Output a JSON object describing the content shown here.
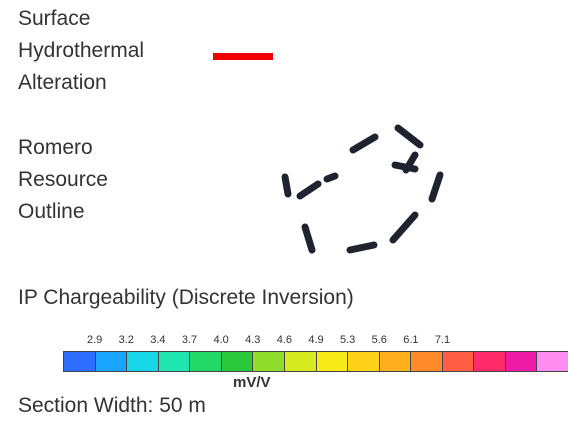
{
  "legend": {
    "hydrothermal": {
      "lines": [
        "Surface",
        "Hydrothermal",
        "Alteration"
      ],
      "color": "#ee0000"
    },
    "resource": {
      "lines": [
        "Romero",
        "Resource",
        "Outline"
      ],
      "color": "#1f2330",
      "style": "dashed"
    },
    "chargeability": {
      "title": "IP Chargeability (Discrete Inversion)",
      "ticks": [
        "2.9",
        "3.2",
        "3.4",
        "3.7",
        "4.0",
        "4.3",
        "4.6",
        "4.9",
        "5.3",
        "5.6",
        "6.1",
        "7.1"
      ],
      "colors": [
        "#2f6fff",
        "#19a4ff",
        "#16d6e8",
        "#1fe6b0",
        "#21d866",
        "#2ac93c",
        "#8fdc2a",
        "#d6ea20",
        "#f8ec18",
        "#ffd21a",
        "#ffb01e",
        "#ff8a2a",
        "#ff5d44",
        "#ff2a6a",
        "#ee1aa8",
        "#ff8cf0"
      ],
      "units": "mV/V"
    },
    "section_width": "Section Width: 50 m"
  }
}
